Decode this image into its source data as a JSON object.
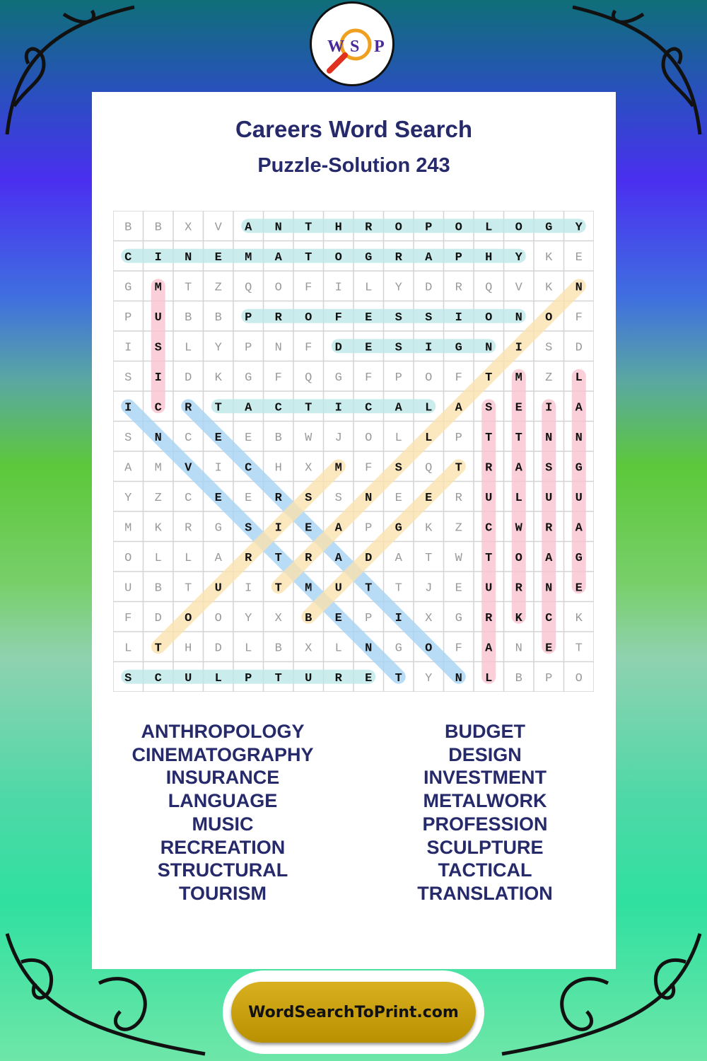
{
  "logo": {
    "letters": [
      "W",
      "S",
      "P"
    ]
  },
  "header": {
    "title": "Careers Word Search",
    "subtitle": "Puzzle-Solution 243"
  },
  "grid": {
    "rows": [
      "BBXVANTHROPOLOGY",
      "CINEMATOGRAPHYKE",
      "GMTZQOFILYDRQVKN",
      "PUBBPROFESSIONOF",
      "ISLYPNFDESIGNISD",
      "SIDKGFQGFPOFTMZL",
      "ICRTACTICALASEIA",
      "SNCEEBWJOLLPTTNN",
      "AMVICHXMFSQTRASG",
      "YZCEERSSNEERULUU",
      "MKRGSIEAPGKZCWRA",
      "OLLARTRADATWTOAG",
      "UBTUITMUTTJEURNE",
      "FDOOYXBEPIXGRKCK",
      "LTHDLBXLNGOFANET",
      "SCULPTURETYNLBPO"
    ],
    "highlights": [
      {
        "word": "ANTHROPOLOGY",
        "start": [
          0,
          4
        ],
        "end": [
          0,
          15
        ],
        "color": "#bde8e8"
      },
      {
        "word": "CINEMATOGRAPHY",
        "start": [
          1,
          0
        ],
        "end": [
          1,
          13
        ],
        "color": "#bde8e8"
      },
      {
        "word": "PROFESSION",
        "start": [
          3,
          4
        ],
        "end": [
          3,
          13
        ],
        "color": "#bde8e8"
      },
      {
        "word": "DESIGN",
        "start": [
          4,
          7
        ],
        "end": [
          4,
          12
        ],
        "color": "#bde8e8"
      },
      {
        "word": "TACTICAL",
        "start": [
          6,
          3
        ],
        "end": [
          6,
          10
        ],
        "color": "#bde8e8"
      },
      {
        "word": "SCULPTURE",
        "start": [
          15,
          0
        ],
        "end": [
          15,
          8
        ],
        "color": "#bde8e8"
      },
      {
        "word": "MUSIC",
        "start": [
          2,
          1
        ],
        "end": [
          6,
          1
        ],
        "color": "#f9c4d2"
      },
      {
        "word": "STRUCTURAL",
        "start": [
          6,
          12
        ],
        "end": [
          15,
          12
        ],
        "color": "#f9c4d2"
      },
      {
        "word": "METALWORK",
        "start": [
          5,
          13
        ],
        "end": [
          13,
          13
        ],
        "color": "#f9c4d2"
      },
      {
        "word": "INSURANCE",
        "start": [
          6,
          14
        ],
        "end": [
          14,
          14
        ],
        "color": "#f9c4d2"
      },
      {
        "word": "LANGUAGE",
        "start": [
          5,
          15
        ],
        "end": [
          12,
          15
        ],
        "color": "#f9c4d2"
      },
      {
        "word": "INVESTMENT",
        "start": [
          6,
          0
        ],
        "end": [
          15,
          9
        ],
        "color": "#a8d4f4"
      },
      {
        "word": "RECREATION",
        "start": [
          6,
          2
        ],
        "end": [
          15,
          11
        ],
        "color": "#a8d4f4"
      },
      {
        "word": "TOURISM",
        "start": [
          14,
          1
        ],
        "end": [
          8,
          7
        ],
        "color": "#fbe3b0"
      },
      {
        "word": "TRANSLATION",
        "start": [
          12,
          5
        ],
        "end": [
          2,
          15
        ],
        "color": "#fbe3b0"
      },
      {
        "word": "BUDGET",
        "start": [
          13,
          6
        ],
        "end": [
          8,
          11
        ],
        "color": "#fbe3b0"
      }
    ]
  },
  "word_list": {
    "left": [
      "ANTHROPOLOGY",
      "CINEMATOGRAPHY",
      "INSURANCE",
      "LANGUAGE",
      "MUSIC",
      "RECREATION",
      "STRUCTURAL",
      "TOURISM"
    ],
    "right": [
      "BUDGET",
      "DESIGN",
      "INVESTMENT",
      "METALWORK",
      "PROFESSION",
      "SCULPTURE",
      "TACTICAL",
      "TRANSLATION"
    ]
  },
  "footer": {
    "site": "WordSearchToPrint.com"
  }
}
